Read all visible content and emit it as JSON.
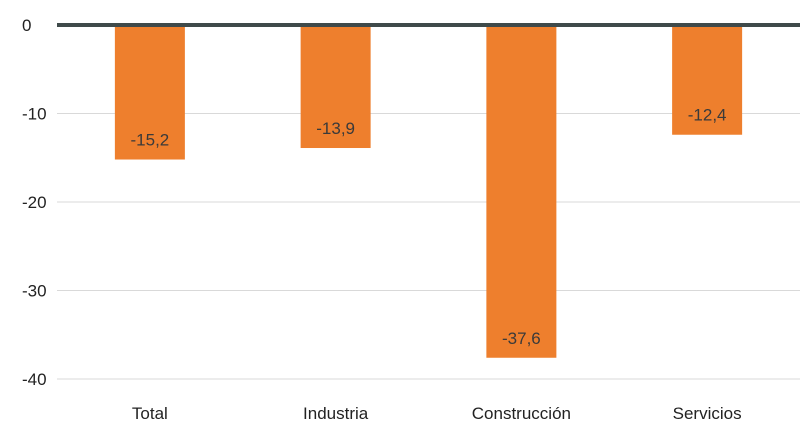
{
  "chart_data": {
    "type": "bar",
    "categories": [
      "Total",
      "Industria",
      "Construcción",
      "Servicios"
    ],
    "values": [
      -15.2,
      -13.9,
      -37.6,
      -12.4
    ],
    "data_labels": [
      "-15,2",
      "-13,9",
      "-37,6",
      "-12,4"
    ],
    "y_ticks": [
      0,
      -10,
      -20,
      -30,
      -40
    ],
    "y_tick_labels": [
      "0",
      "-10",
      "-20",
      "-30",
      "-40"
    ],
    "ylim": [
      -40,
      0
    ],
    "grid": true,
    "title": "",
    "xlabel": "",
    "ylabel": "",
    "colors": {
      "bar": "#ee7f2d",
      "zero_line": "#3f4a4a",
      "grid": "#d9d9d9"
    }
  }
}
